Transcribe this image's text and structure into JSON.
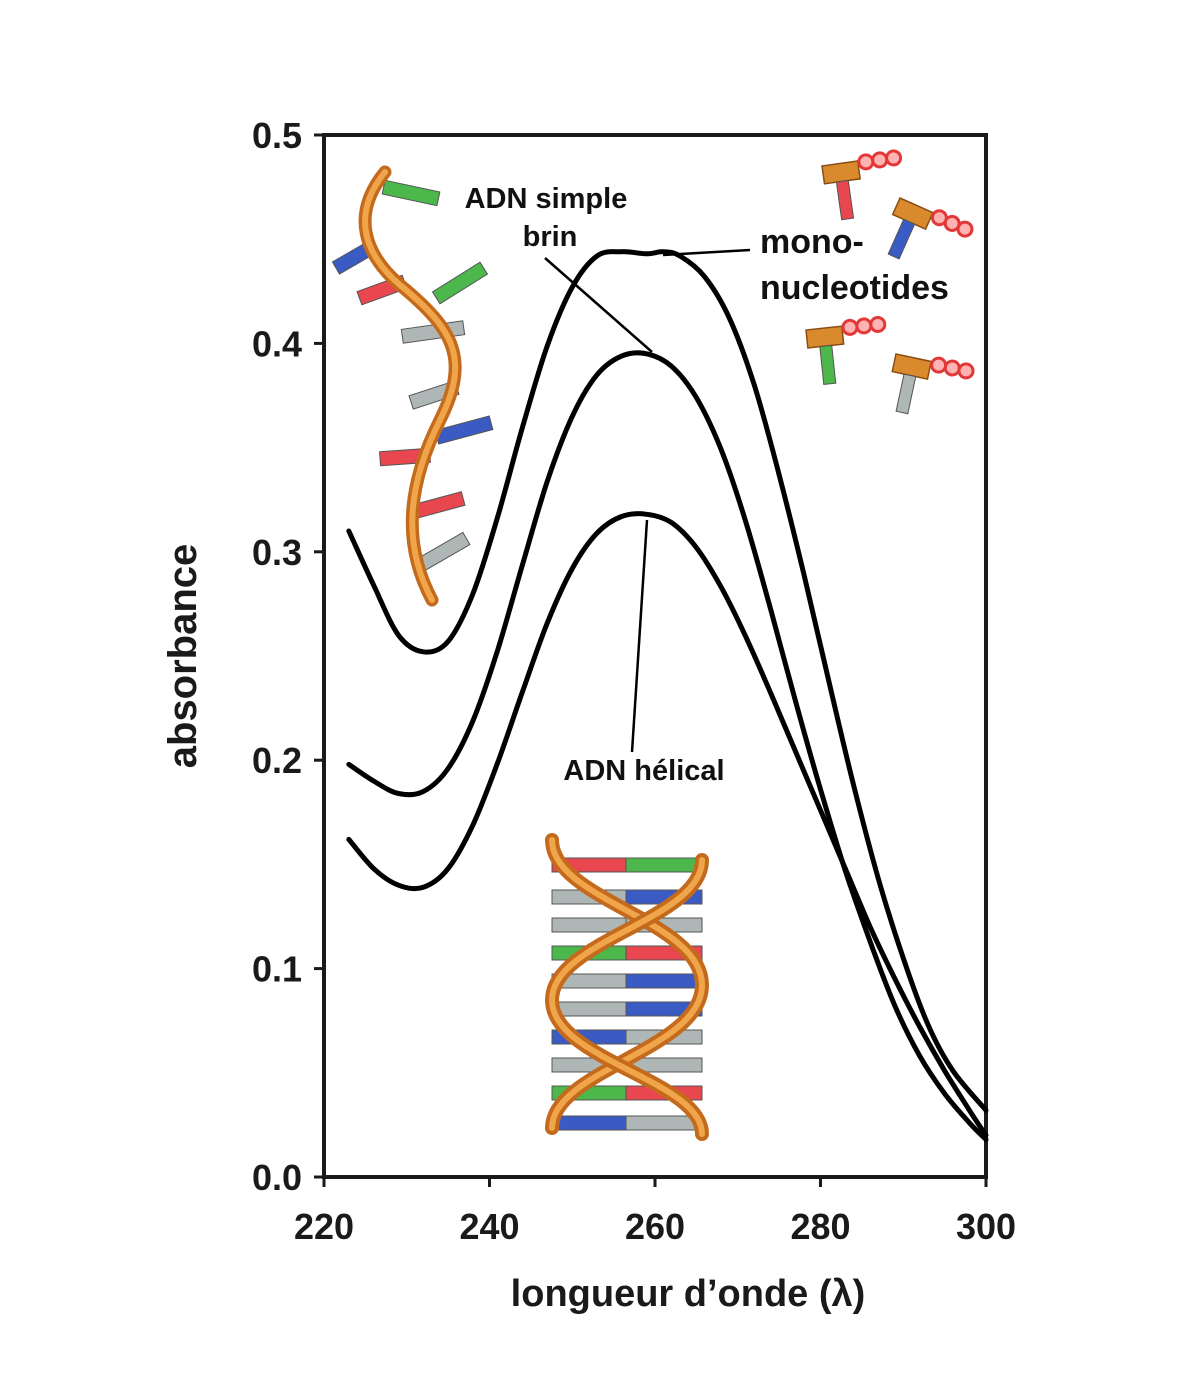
{
  "chart_data": {
    "type": "line",
    "xlabel": "longueur d’onde (λ)",
    "ylabel": "absorbance",
    "xlim": [
      220,
      300
    ],
    "ylim": [
      0.0,
      0.5
    ],
    "x_ticks": [
      "220",
      "240",
      "260",
      "280",
      "300"
    ],
    "y_ticks": [
      "0.0",
      "0.1",
      "0.2",
      "0.3",
      "0.4",
      "0.5"
    ],
    "grid": false,
    "series": [
      {
        "name": "mono-nucleotides",
        "x": [
          223,
          226,
          229,
          232,
          235,
          238,
          241,
          244,
          247,
          250,
          253,
          256,
          259,
          261,
          263,
          266,
          269,
          272,
          275,
          278,
          281,
          284,
          287,
          290,
          293,
          296,
          300
        ],
        "values": [
          0.31,
          0.284,
          0.26,
          0.252,
          0.257,
          0.28,
          0.317,
          0.36,
          0.399,
          0.427,
          0.442,
          0.444,
          0.443,
          0.444,
          0.442,
          0.432,
          0.412,
          0.38,
          0.337,
          0.289,
          0.238,
          0.188,
          0.143,
          0.105,
          0.073,
          0.051,
          0.032
        ]
      },
      {
        "name": "ADN simple brin",
        "x": [
          223,
          226,
          229,
          232,
          235,
          238,
          241,
          244,
          247,
          250,
          253,
          256,
          259,
          262,
          265,
          268,
          271,
          274,
          277,
          280,
          283,
          286,
          289,
          292,
          295,
          298,
          300
        ],
        "values": [
          0.198,
          0.19,
          0.184,
          0.185,
          0.196,
          0.219,
          0.253,
          0.294,
          0.334,
          0.365,
          0.385,
          0.394,
          0.395,
          0.389,
          0.374,
          0.349,
          0.314,
          0.272,
          0.228,
          0.186,
          0.147,
          0.113,
          0.082,
          0.058,
          0.04,
          0.026,
          0.018
        ]
      },
      {
        "name": "ADN hélical",
        "x": [
          223,
          226,
          229,
          232,
          235,
          238,
          241,
          244,
          247,
          250,
          253,
          256,
          259,
          262,
          265,
          268,
          271,
          274,
          277,
          280,
          283,
          286,
          289,
          292,
          295,
          298,
          300
        ],
        "values": [
          0.162,
          0.148,
          0.14,
          0.139,
          0.148,
          0.169,
          0.199,
          0.233,
          0.266,
          0.292,
          0.309,
          0.317,
          0.318,
          0.314,
          0.302,
          0.283,
          0.259,
          0.232,
          0.204,
          0.176,
          0.148,
          0.12,
          0.095,
          0.072,
          0.051,
          0.032,
          0.02
        ]
      }
    ],
    "annotations": [
      {
        "id": "ss",
        "lines": [
          "ADN simple",
          "brin"
        ]
      },
      {
        "id": "mono",
        "lines": [
          "mono-",
          "nucleotides"
        ]
      },
      {
        "id": "helical",
        "lines": [
          "ADN hélical"
        ]
      }
    ]
  }
}
